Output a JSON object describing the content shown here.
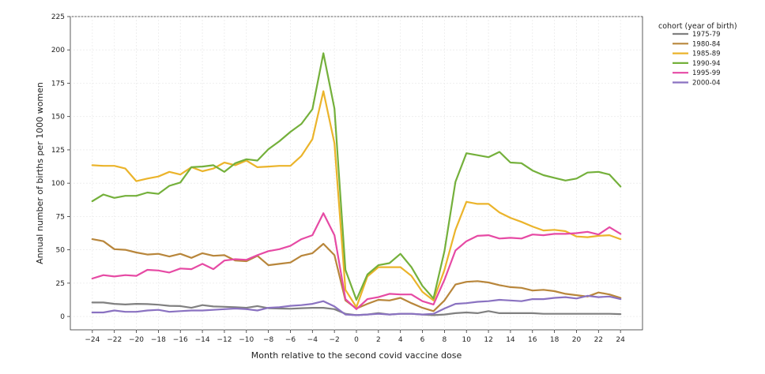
{
  "chart_data": {
    "type": "line",
    "xlabel": "Month relative to the second covid vaccine dose",
    "ylabel": "Annual number of births per 1000 women",
    "xlim": [
      -26,
      26
    ],
    "ylim": [
      -10,
      225
    ],
    "xticks": [
      -24,
      -22,
      -20,
      -18,
      -16,
      -14,
      -12,
      -10,
      -8,
      -6,
      -4,
      -2,
      0,
      2,
      4,
      6,
      8,
      10,
      12,
      14,
      16,
      18,
      20,
      22,
      24
    ],
    "xtick_labels": [
      "−24",
      "−22",
      "−20",
      "−18",
      "−16",
      "−14",
      "−12",
      "−10",
      "−8",
      "−6",
      "−4",
      "−2",
      "0",
      "2",
      "4",
      "6",
      "8",
      "10",
      "12",
      "14",
      "16",
      "18",
      "20",
      "22",
      "24"
    ],
    "yticks": [
      0,
      25,
      50,
      75,
      100,
      125,
      150,
      175,
      200,
      225
    ],
    "ytick_labels": [
      "0",
      "25",
      "50",
      "75",
      "100",
      "125",
      "150",
      "175",
      "200",
      "225"
    ],
    "grid": true,
    "legend": {
      "title": "cohort (year of birth)",
      "placement": "outside-right-top"
    },
    "x": [
      -24,
      -23,
      -22,
      -21,
      -20,
      -19,
      -18,
      -17,
      -16,
      -15,
      -14,
      -13,
      -12,
      -11,
      -10,
      -9,
      -8,
      -7,
      -6,
      -5,
      -4,
      -3,
      -2,
      -1,
      0,
      1,
      2,
      3,
      4,
      5,
      6,
      7,
      8,
      9,
      10,
      11,
      12,
      13,
      14,
      15,
      16,
      17,
      18,
      19,
      20,
      21,
      22,
      23,
      24
    ],
    "series": [
      {
        "name": "1975-79",
        "color": "#808080",
        "values": [
          10.5,
          10.5,
          9.5,
          9,
          9.5,
          9.3,
          8.8,
          8,
          7.8,
          6.5,
          8.5,
          7.5,
          7.3,
          7,
          6.5,
          7.8,
          6.2,
          6,
          5.8,
          6.2,
          6.5,
          6.5,
          5.5,
          2,
          1,
          1.5,
          2.5,
          1.5,
          2,
          2,
          1.5,
          1,
          1.5,
          2.5,
          3,
          2.5,
          4,
          2.5,
          2.5,
          2.5,
          2.5,
          2,
          2,
          2,
          2,
          2,
          2,
          2,
          1.8
        ]
      },
      {
        "name": "1980-84",
        "color": "#b8863b",
        "values": [
          58,
          56.5,
          50.5,
          50,
          48,
          46.5,
          47,
          45,
          47,
          44,
          47.5,
          45.5,
          46,
          42,
          41.5,
          45.5,
          38.5,
          39.5,
          40.5,
          45.5,
          47.5,
          54.5,
          46,
          12,
          6,
          9.5,
          12.5,
          12,
          14,
          10,
          6.5,
          4,
          12,
          24,
          26,
          26.5,
          25.5,
          23.5,
          22,
          21.5,
          19.5,
          20,
          19,
          17,
          16,
          15,
          18,
          16.5,
          14
        ]
      },
      {
        "name": "1985-89",
        "color": "#ebb42b",
        "values": [
          113.5,
          113,
          113,
          111,
          101.5,
          103.5,
          105,
          108.5,
          106.5,
          112,
          109,
          111,
          115.5,
          113.5,
          117,
          112,
          112.5,
          113,
          113,
          120.5,
          133,
          169,
          130,
          20,
          7,
          30,
          37,
          37,
          37,
          30.5,
          18.5,
          12,
          35,
          65,
          86,
          84.5,
          84.5,
          78,
          74,
          71,
          67.5,
          64.5,
          65,
          64,
          60,
          59.5,
          60.5,
          61,
          58
        ]
      },
      {
        "name": "1990-94",
        "color": "#74b03b",
        "values": [
          86.5,
          91.5,
          89,
          90.5,
          90.5,
          93,
          92,
          98,
          100.5,
          112,
          112.5,
          113.5,
          108.5,
          115,
          118,
          117,
          125.5,
          131.5,
          138.5,
          144.5,
          155.5,
          197.5,
          156,
          35,
          12.5,
          31.5,
          38.5,
          40,
          47,
          37,
          23,
          13.5,
          49,
          101,
          122.5,
          121,
          119.5,
          123.5,
          115.5,
          115,
          109.5,
          106,
          104,
          102,
          103.5,
          108,
          108.5,
          106.5,
          97.5
        ]
      },
      {
        "name": "1995-99",
        "color": "#e64aa4",
        "values": [
          28.5,
          31,
          30,
          31,
          30.5,
          35,
          34.5,
          33,
          36,
          35.5,
          39.5,
          35.5,
          42,
          43,
          42.5,
          46,
          49,
          50.5,
          53,
          58,
          61,
          77.5,
          61,
          13,
          5.5,
          13,
          14.5,
          17,
          16.5,
          16.5,
          11.5,
          9,
          27.5,
          49.5,
          56.5,
          60.5,
          61,
          58.5,
          59,
          58.5,
          61.5,
          61,
          62,
          62,
          62.5,
          63.5,
          61.5,
          67,
          62
        ]
      },
      {
        "name": "2000-04",
        "color": "#8a72c1",
        "values": [
          3,
          3,
          4.5,
          3.5,
          3.5,
          4.5,
          5,
          3.5,
          4,
          4.5,
          4.5,
          5,
          5.5,
          6,
          5.5,
          4.5,
          6.5,
          7,
          8,
          8.5,
          9.5,
          11.5,
          7.5,
          1.5,
          1,
          1.5,
          2,
          1.5,
          2,
          2,
          1.5,
          2,
          6,
          9.5,
          10,
          11,
          11.5,
          12.5,
          12,
          11.5,
          13,
          13,
          14,
          14.5,
          13.5,
          15.5,
          14.5,
          15,
          13
        ]
      }
    ]
  }
}
